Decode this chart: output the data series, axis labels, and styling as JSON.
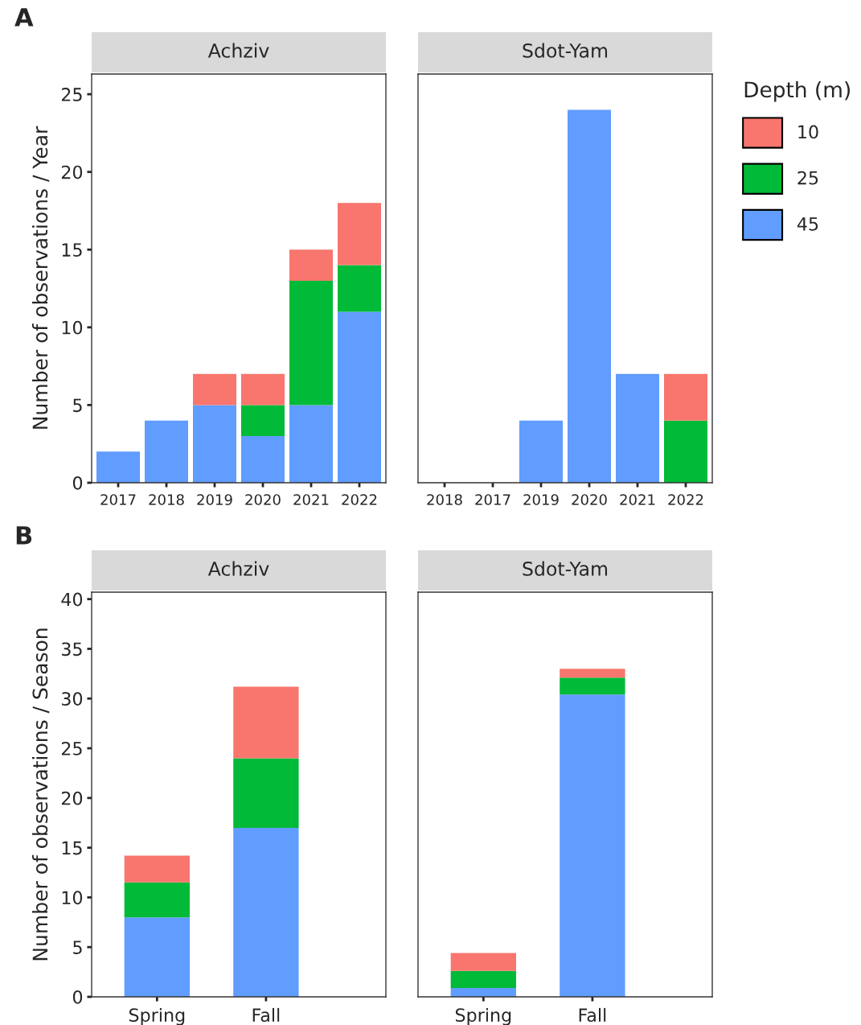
{
  "chart_data": [
    {
      "type": "bar",
      "title": "Achziv",
      "ylabel": "Number of observations / Year",
      "annotations": [
        "A"
      ],
      "categories": [
        "2017",
        "2018",
        "2019",
        "2020",
        "2021",
        "2022"
      ],
      "stacked": true,
      "ylim": [
        0,
        26.3
      ],
      "yticks": [
        0,
        5,
        10,
        15,
        20,
        25
      ],
      "grid": false,
      "legend": false,
      "series": [
        {
          "color": "#619cff",
          "values": [
            2,
            4,
            5,
            3,
            5,
            11
          ]
        },
        {
          "color": "#00ba38",
          "values": [
            null,
            null,
            null,
            2,
            8,
            3
          ]
        },
        {
          "color": "#f8766d",
          "values": [
            null,
            null,
            2,
            2,
            2,
            4
          ]
        }
      ]
    },
    {
      "type": "bar",
      "title": "Sdot-Yam",
      "legend_title": "Depth (m)",
      "categories": [
        "2018",
        "2017",
        "2019",
        "2020",
        "2021",
        "2022"
      ],
      "stacked": true,
      "ylim": [
        0,
        26.3
      ],
      "tick_labels": "x",
      "grid": false,
      "legend": "right",
      "series": [
        {
          "name": "45",
          "color": "#619cff",
          "values": [
            null,
            null,
            4,
            24,
            7,
            null
          ]
        },
        {
          "name": "25",
          "color": "#00ba38",
          "values": [
            null,
            null,
            null,
            null,
            null,
            4
          ]
        },
        {
          "name": "10",
          "color": "#f8766d",
          "values": [
            null,
            null,
            null,
            null,
            null,
            3
          ]
        }
      ]
    },
    {
      "type": "bar",
      "title": "Achziv",
      "ylabel": "Number of observations / Season",
      "annotations": [
        "B"
      ],
      "categories": [
        "Spring",
        "Fall"
      ],
      "stacked": true,
      "ylim": [
        0,
        40.7
      ],
      "yticks": [
        0,
        5,
        10,
        15,
        20,
        25,
        30,
        35,
        40
      ],
      "grid": false,
      "legend": false,
      "series": [
        {
          "color": "#619cff",
          "values": [
            8,
            17
          ]
        },
        {
          "color": "#00ba38",
          "values": [
            3.5,
            7
          ]
        },
        {
          "color": "#f8766d",
          "values": [
            2.7,
            7.2
          ]
        }
      ]
    },
    {
      "type": "bar",
      "title": "Sdot-Yam",
      "categories": [
        "Spring",
        "Fall"
      ],
      "stacked": true,
      "ylim": [
        0,
        40.7
      ],
      "tick_labels": "x",
      "grid": false,
      "legend": false,
      "series": [
        {
          "color": "#619cff",
          "values": [
            0.9,
            30.4
          ]
        },
        {
          "color": "#00ba38",
          "values": [
            1.7,
            1.7
          ]
        },
        {
          "color": "#f8766d",
          "values": [
            1.8,
            0.9
          ]
        }
      ]
    }
  ]
}
